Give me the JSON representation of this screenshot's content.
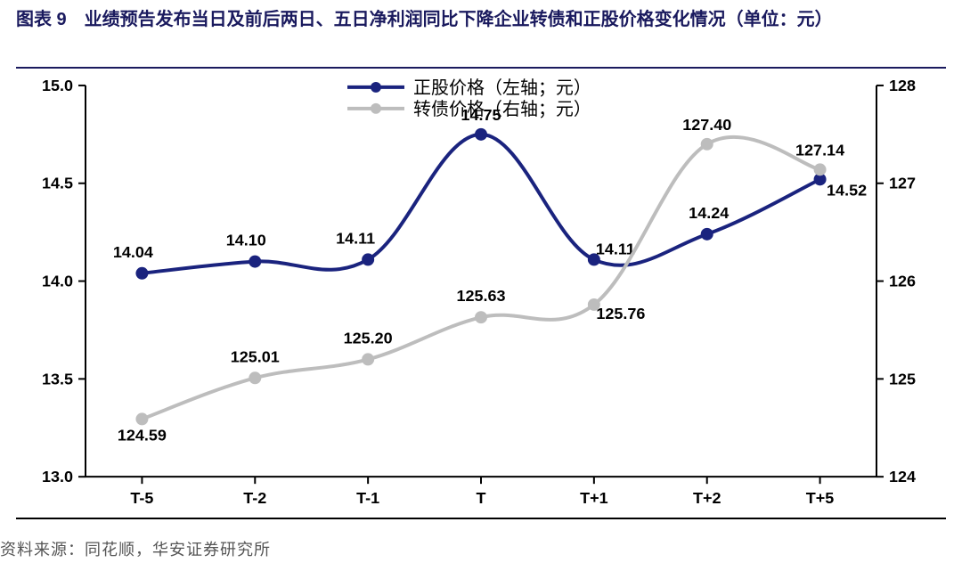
{
  "title": "图表 9　业绩预告发布当日及前后两日、五日净利润同比下降企业转债和正股价格变化情况（单位：元）",
  "source": "资料来源：同花顺，华安证券研究所",
  "legend": {
    "series1": "正股价格（左轴；元）",
    "series2": "转债价格（右轴；元）"
  },
  "chart": {
    "type": "dual-axis-line",
    "categories": [
      "T-5",
      "T-2",
      "T-1",
      "T",
      "T+1",
      "T+2",
      "T+5"
    ],
    "series": [
      {
        "name": "正股价格（左轴；元）",
        "axis": "left",
        "color": "#1a237e",
        "line_width": 4,
        "marker": "circle",
        "marker_size": 7,
        "values": [
          14.04,
          14.1,
          14.11,
          14.75,
          14.11,
          14.24,
          14.52
        ],
        "value_labels": [
          "14.04",
          "14.10",
          "14.11",
          "14.75",
          "14.11",
          "14.24",
          "14.52"
        ]
      },
      {
        "name": "转债价格（右轴；元）",
        "axis": "right",
        "color": "#bdbdbd",
        "line_width": 4,
        "marker": "circle",
        "marker_size": 7,
        "values": [
          124.59,
          125.01,
          125.2,
          125.63,
          125.76,
          127.4,
          127.14
        ],
        "value_labels": [
          "124.59",
          "125.01",
          "125.20",
          "125.63",
          "125.76",
          "127.40",
          "127.14"
        ]
      }
    ],
    "left_axis": {
      "min": 13.0,
      "max": 15.0,
      "ticks": [
        13.0,
        13.5,
        14.0,
        14.5,
        15.0
      ],
      "tick_labels": [
        "13.0",
        "13.5",
        "14.0",
        "14.5",
        "15.0"
      ],
      "fontsize": 18,
      "fontweight": "bold"
    },
    "right_axis": {
      "min": 124,
      "max": 128,
      "ticks": [
        124,
        125,
        126,
        127,
        128
      ],
      "tick_labels": [
        "124",
        "125",
        "126",
        "127",
        "128"
      ],
      "fontsize": 18,
      "fontweight": "bold"
    },
    "background_color": "#ffffff",
    "axis_color": "#000000",
    "tick_color": "#000000",
    "label_color": "#000000"
  }
}
